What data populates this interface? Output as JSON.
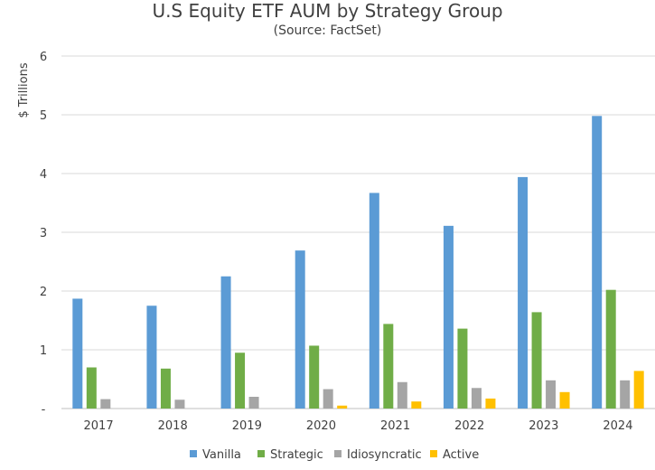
{
  "chart_data": {
    "type": "bar",
    "title": "U.S Equity ETF AUM by Strategy Group",
    "subtitle": "(Source: FactSet)",
    "xlabel": "",
    "ylabel": "$ Trillions",
    "ylim": [
      0,
      6
    ],
    "yticks": [
      0,
      1,
      2,
      3,
      4,
      5,
      6
    ],
    "ytick_labels": [
      "-",
      "1",
      "2",
      "3",
      "4",
      "5",
      "6"
    ],
    "grid": true,
    "legend_position": "bottom",
    "categories": [
      "2017",
      "2018",
      "2019",
      "2020",
      "2021",
      "2022",
      "2023",
      "2024"
    ],
    "series": [
      {
        "name": "Vanilla",
        "color": "#5B9BD5",
        "values": [
          1.87,
          1.75,
          2.25,
          2.69,
          3.67,
          3.11,
          3.94,
          4.98
        ]
      },
      {
        "name": "Strategic",
        "color": "#70AD47",
        "values": [
          0.7,
          0.68,
          0.95,
          1.07,
          1.44,
          1.36,
          1.64,
          2.02
        ]
      },
      {
        "name": "Idiosyncratic",
        "color": "#A5A5A5",
        "values": [
          0.16,
          0.15,
          0.2,
          0.33,
          0.45,
          0.35,
          0.48,
          0.48
        ]
      },
      {
        "name": "Active",
        "color": "#FFC000",
        "values": [
          0.0,
          0.0,
          0.0,
          0.05,
          0.12,
          0.17,
          0.28,
          0.64
        ]
      }
    ]
  }
}
